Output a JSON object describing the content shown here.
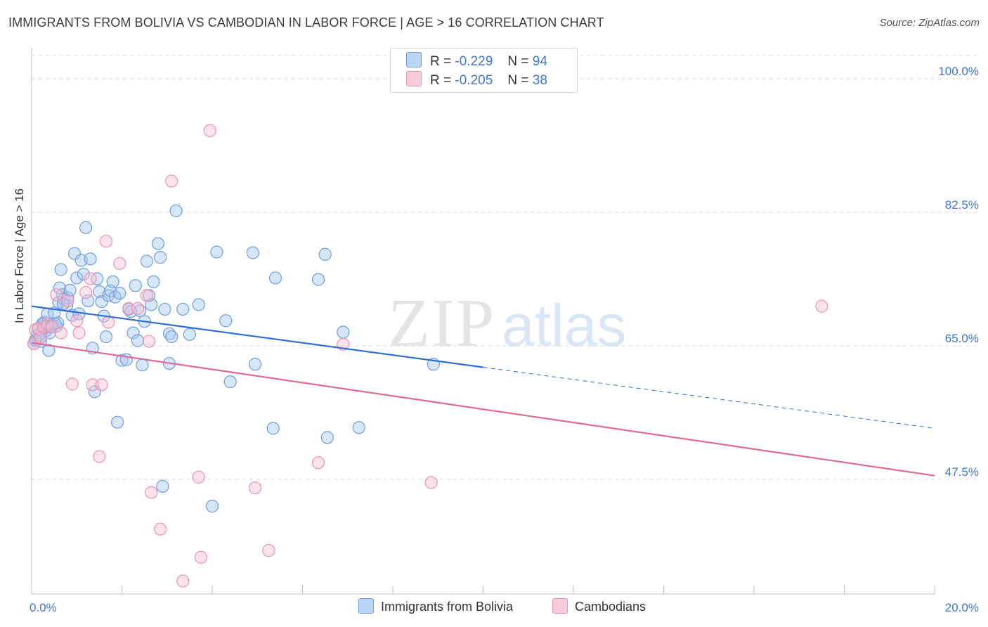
{
  "header": {
    "title": "IMMIGRANTS FROM BOLIVIA VS CAMBODIAN IN LABOR FORCE | AGE > 16 CORRELATION CHART",
    "source": "Source: ZipAtlas.com"
  },
  "legend": {
    "series1": {
      "r_label": "R =",
      "r_value": "-0.229",
      "n_label": "N =",
      "n_value": "94"
    },
    "series2": {
      "r_label": "R =",
      "r_value": "-0.205",
      "n_label": "N =",
      "n_value": "38"
    }
  },
  "watermark": {
    "zip": "ZIP",
    "atlas": "atlas"
  },
  "colors": {
    "bolivia_fill": "#a9c8f2",
    "bolivia_stroke": "#6e9de0",
    "bolivia_line": "#2f6fd0",
    "cambodian_fill": "#f7c1d2",
    "cambodian_stroke": "#e993b0",
    "cambodian_line": "#e0689a",
    "tick_label": "#3f77d0",
    "grid": "#d9d9d9"
  },
  "chart_data": {
    "type": "scatter",
    "title": "IMMIGRANTS FROM BOLIVIA VS CAMBODIAN IN LABOR FORCE | AGE > 16 CORRELATION CHART",
    "xlabel": "",
    "ylabel": "In Labor Force | Age > 16",
    "xlim": [
      0,
      20
    ],
    "ylim": [
      32.5,
      103.5
    ],
    "x_tick_labels": [
      {
        "value": 0,
        "label": "0.0%"
      },
      {
        "value": 20,
        "label": "20.0%"
      }
    ],
    "y_ticks": [
      {
        "value": 100,
        "label": "100.0%"
      },
      {
        "value": 82.5,
        "label": "82.5%"
      },
      {
        "value": 65,
        "label": "65.0%"
      },
      {
        "value": 47.5,
        "label": "47.5%"
      }
    ],
    "grid": true,
    "legend_position": "top-center",
    "series": [
      {
        "name": "Immigrants from Bolivia",
        "points": [
          [
            0.05,
            65.3
          ],
          [
            0.1,
            65.8
          ],
          [
            0.12,
            66.4
          ],
          [
            0.15,
            67.2
          ],
          [
            0.18,
            66.0
          ],
          [
            0.2,
            65.6
          ],
          [
            0.22,
            66.9
          ],
          [
            0.25,
            67.8
          ],
          [
            0.28,
            68.1
          ],
          [
            0.3,
            67.4
          ],
          [
            0.32,
            67.0
          ],
          [
            0.35,
            69.2
          ],
          [
            0.38,
            64.4
          ],
          [
            0.4,
            66.7
          ],
          [
            0.45,
            67.7
          ],
          [
            0.5,
            69.3
          ],
          [
            0.55,
            67.6
          ],
          [
            0.6,
            70.7
          ],
          [
            0.62,
            72.6
          ],
          [
            0.65,
            75.0
          ],
          [
            0.68,
            71.7
          ],
          [
            0.72,
            71.1
          ],
          [
            0.78,
            70.3
          ],
          [
            0.8,
            71.3
          ],
          [
            0.85,
            72.3
          ],
          [
            0.9,
            69.0
          ],
          [
            0.95,
            77.1
          ],
          [
            1.0,
            73.9
          ],
          [
            1.05,
            69.2
          ],
          [
            1.1,
            76.2
          ],
          [
            1.15,
            74.4
          ],
          [
            1.2,
            80.5
          ],
          [
            1.25,
            70.9
          ],
          [
            1.3,
            76.4
          ],
          [
            1.35,
            64.7
          ],
          [
            1.4,
            59.0
          ],
          [
            1.45,
            73.8
          ],
          [
            1.5,
            72.1
          ],
          [
            1.55,
            70.8
          ],
          [
            1.6,
            68.9
          ],
          [
            1.65,
            66.2
          ],
          [
            1.7,
            71.6
          ],
          [
            1.75,
            72.2
          ],
          [
            1.8,
            73.4
          ],
          [
            1.85,
            71.4
          ],
          [
            1.9,
            55.0
          ],
          [
            1.95,
            71.9
          ],
          [
            2.0,
            63.1
          ],
          [
            2.1,
            63.2
          ],
          [
            2.15,
            69.8
          ],
          [
            2.2,
            69.5
          ],
          [
            2.25,
            66.7
          ],
          [
            2.3,
            72.9
          ],
          [
            2.35,
            65.7
          ],
          [
            2.4,
            69.6
          ],
          [
            2.45,
            62.5
          ],
          [
            2.5,
            68.2
          ],
          [
            2.55,
            76.1
          ],
          [
            2.6,
            71.6
          ],
          [
            2.65,
            70.4
          ],
          [
            2.7,
            73.4
          ],
          [
            2.8,
            78.4
          ],
          [
            2.9,
            46.6
          ],
          [
            2.85,
            76.6
          ],
          [
            2.95,
            69.8
          ],
          [
            3.05,
            66.6
          ],
          [
            3.1,
            66.2
          ],
          [
            3.05,
            62.7
          ],
          [
            3.2,
            82.7
          ],
          [
            3.35,
            69.8
          ],
          [
            3.5,
            66.5
          ],
          [
            3.7,
            70.4
          ],
          [
            4.0,
            44.0
          ],
          [
            4.1,
            77.3
          ],
          [
            4.3,
            68.3
          ],
          [
            4.4,
            60.3
          ],
          [
            4.9,
            77.2
          ],
          [
            4.95,
            62.6
          ],
          [
            5.35,
            54.2
          ],
          [
            5.4,
            73.9
          ],
          [
            6.35,
            73.7
          ],
          [
            6.5,
            77.0
          ],
          [
            6.55,
            53.0
          ],
          [
            6.9,
            66.8
          ],
          [
            7.25,
            54.3
          ],
          [
            8.9,
            62.6
          ],
          [
            0.08,
            65.7
          ],
          [
            0.16,
            66.4
          ],
          [
            0.24,
            67.9
          ],
          [
            0.34,
            67.6
          ],
          [
            0.42,
            67.5
          ],
          [
            0.52,
            67.9
          ],
          [
            0.58,
            68.0
          ],
          [
            0.7,
            70.5
          ]
        ]
      },
      {
        "name": "Cambodians",
        "points": [
          [
            0.05,
            65.3
          ],
          [
            0.08,
            67.1
          ],
          [
            0.15,
            67.3
          ],
          [
            0.2,
            66.1
          ],
          [
            0.28,
            67.4
          ],
          [
            0.35,
            67.9
          ],
          [
            0.45,
            67.5
          ],
          [
            0.55,
            71.7
          ],
          [
            0.65,
            66.7
          ],
          [
            0.8,
            70.9
          ],
          [
            0.9,
            60.0
          ],
          [
            1.0,
            68.3
          ],
          [
            1.05,
            66.7
          ],
          [
            1.2,
            72.0
          ],
          [
            1.3,
            73.8
          ],
          [
            1.35,
            59.9
          ],
          [
            1.5,
            50.5
          ],
          [
            1.55,
            59.9
          ],
          [
            1.65,
            78.7
          ],
          [
            1.7,
            68.1
          ],
          [
            1.95,
            75.8
          ],
          [
            2.15,
            69.9
          ],
          [
            2.35,
            69.9
          ],
          [
            2.55,
            71.6
          ],
          [
            2.6,
            65.6
          ],
          [
            2.65,
            45.8
          ],
          [
            2.85,
            41.0
          ],
          [
            3.1,
            86.6
          ],
          [
            3.35,
            34.2
          ],
          [
            3.7,
            47.8
          ],
          [
            3.75,
            37.3
          ],
          [
            3.95,
            93.2
          ],
          [
            4.95,
            46.4
          ],
          [
            5.25,
            38.2
          ],
          [
            6.35,
            49.7
          ],
          [
            6.9,
            65.2
          ],
          [
            8.85,
            47.1
          ],
          [
            17.5,
            70.2
          ]
        ]
      }
    ],
    "trend_lines": [
      {
        "series": "Immigrants from Bolivia",
        "from": [
          0,
          70.2
        ],
        "to": [
          10,
          62.2
        ],
        "dashed_to": [
          20,
          54.2
        ]
      },
      {
        "series": "Cambodians",
        "from": [
          0,
          65.4
        ],
        "to": [
          20,
          48.0
        ]
      }
    ]
  },
  "bottom_legend": [
    "Immigrants from Bolivia",
    "Cambodians"
  ]
}
